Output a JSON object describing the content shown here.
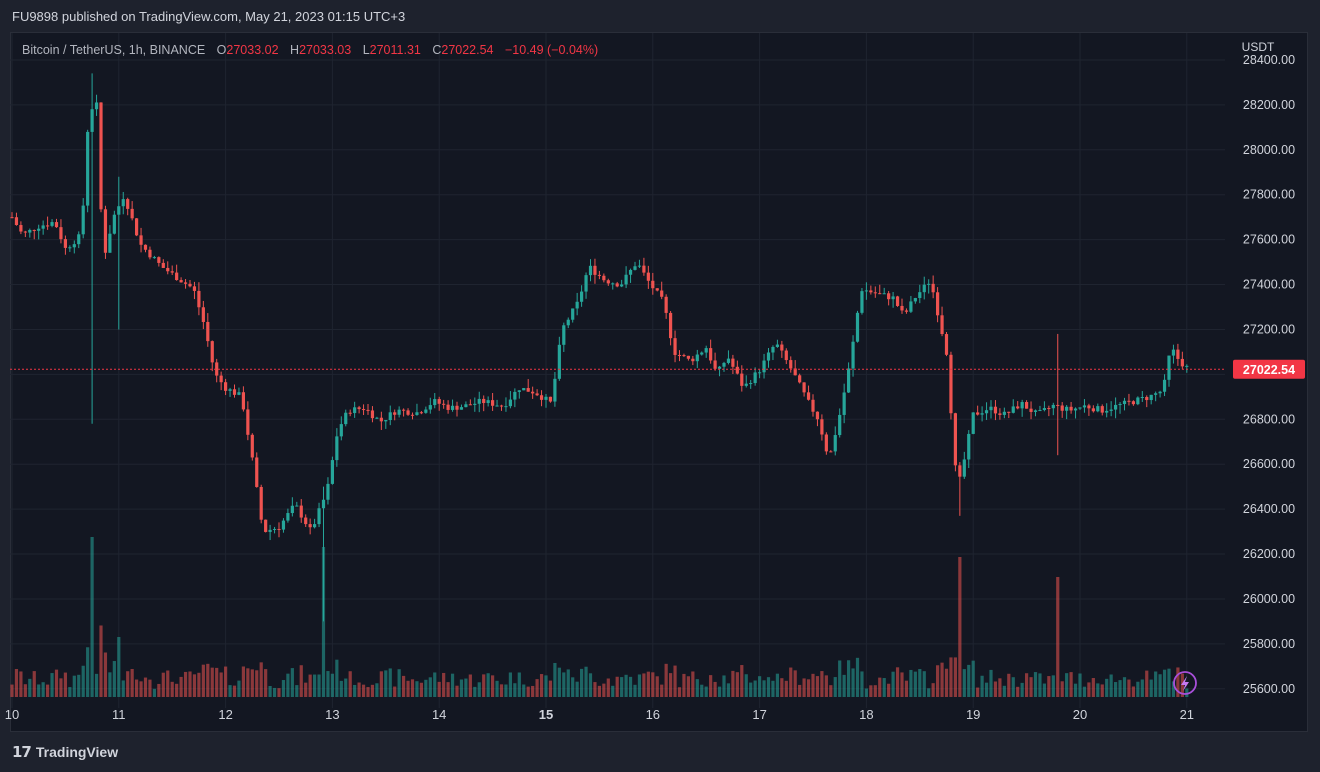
{
  "caption": "FU9898 published on TradingView.com, May 21, 2023 01:15 UTC+3",
  "footer_brand": "TradingView",
  "legend": {
    "symbol": "Bitcoin / TetherUS, 1h, BINANCE",
    "o_label": "O",
    "o_value": "27033.02",
    "h_label": "H",
    "h_value": "27033.03",
    "l_label": "L",
    "l_value": "27011.31",
    "c_label": "C",
    "c_value": "27022.54",
    "change": "−10.49 (−0.04%)"
  },
  "colors": {
    "up": "#26a69a",
    "down": "#ef5350",
    "price_tag": "#f23645",
    "grid": "#1f2430"
  },
  "chart_data": {
    "type": "candlestick",
    "ylabel": "USDT",
    "ylim": [
      25550,
      28520
    ],
    "y_ticks": [
      "28400.00",
      "28200.00",
      "28000.00",
      "27800.00",
      "27600.00",
      "27400.00",
      "27200.00",
      "27000.00",
      "26800.00",
      "26600.00",
      "26400.00",
      "26200.00",
      "26000.00",
      "25800.00",
      "25600.00"
    ],
    "x_ticks": [
      {
        "label": "10",
        "day": 10,
        "bold": false
      },
      {
        "label": "11",
        "day": 11,
        "bold": false
      },
      {
        "label": "12",
        "day": 12,
        "bold": false
      },
      {
        "label": "13",
        "day": 13,
        "bold": false
      },
      {
        "label": "14",
        "day": 14,
        "bold": false
      },
      {
        "label": "15",
        "day": 15,
        "bold": true
      },
      {
        "label": "16",
        "day": 16,
        "bold": false
      },
      {
        "label": "17",
        "day": 17,
        "bold": false
      },
      {
        "label": "18",
        "day": 18,
        "bold": false
      },
      {
        "label": "19",
        "day": 19,
        "bold": false
      },
      {
        "label": "20",
        "day": 20,
        "bold": false
      },
      {
        "label": "21",
        "day": 21,
        "bold": false
      }
    ],
    "last_price": 27022.54,
    "last_price_label": "27022.54",
    "close_path": [
      [
        10.0,
        27700
      ],
      [
        10.1,
        27620
      ],
      [
        10.25,
        27660
      ],
      [
        10.4,
        27680
      ],
      [
        10.5,
        27560
      ],
      [
        10.65,
        27620
      ],
      [
        10.72,
        28180
      ],
      [
        10.8,
        28200
      ],
      [
        10.85,
        27500
      ],
      [
        10.95,
        27700
      ],
      [
        11.05,
        27800
      ],
      [
        11.2,
        27580
      ],
      [
        11.4,
        27480
      ],
      [
        11.55,
        27430
      ],
      [
        11.7,
        27380
      ],
      [
        11.8,
        27220
      ],
      [
        11.9,
        27000
      ],
      [
        12.0,
        26940
      ],
      [
        12.15,
        26900
      ],
      [
        12.25,
        26620
      ],
      [
        12.35,
        26300
      ],
      [
        12.5,
        26320
      ],
      [
        12.65,
        26420
      ],
      [
        12.8,
        26300
      ],
      [
        12.95,
        26480
      ],
      [
        13.05,
        26750
      ],
      [
        13.15,
        26840
      ],
      [
        13.3,
        26850
      ],
      [
        13.45,
        26790
      ],
      [
        13.6,
        26840
      ],
      [
        13.8,
        26830
      ],
      [
        13.95,
        26880
      ],
      [
        14.1,
        26850
      ],
      [
        14.25,
        26860
      ],
      [
        14.4,
        26880
      ],
      [
        14.6,
        26860
      ],
      [
        14.75,
        26940
      ],
      [
        14.9,
        26920
      ],
      [
        15.05,
        26870
      ],
      [
        15.15,
        27200
      ],
      [
        15.3,
        27320
      ],
      [
        15.4,
        27480
      ],
      [
        15.55,
        27420
      ],
      [
        15.7,
        27400
      ],
      [
        15.85,
        27500
      ],
      [
        15.95,
        27420
      ],
      [
        16.1,
        27320
      ],
      [
        16.2,
        27100
      ],
      [
        16.35,
        27060
      ],
      [
        16.5,
        27120
      ],
      [
        16.6,
        27000
      ],
      [
        16.7,
        27080
      ],
      [
        16.85,
        26940
      ],
      [
        17.0,
        27020
      ],
      [
        17.15,
        27140
      ],
      [
        17.3,
        27020
      ],
      [
        17.45,
        26880
      ],
      [
        17.55,
        26800
      ],
      [
        17.65,
        26620
      ],
      [
        17.75,
        26820
      ],
      [
        17.85,
        27060
      ],
      [
        17.95,
        27380
      ],
      [
        18.1,
        27360
      ],
      [
        18.25,
        27340
      ],
      [
        18.35,
        27260
      ],
      [
        18.45,
        27340
      ],
      [
        18.6,
        27420
      ],
      [
        18.75,
        27100
      ],
      [
        18.85,
        26480
      ],
      [
        18.9,
        26580
      ],
      [
        19.0,
        26820
      ],
      [
        19.15,
        26850
      ],
      [
        19.3,
        26820
      ],
      [
        19.45,
        26870
      ],
      [
        19.6,
        26820
      ],
      [
        19.75,
        26860
      ],
      [
        19.9,
        26840
      ],
      [
        20.05,
        26860
      ],
      [
        20.2,
        26840
      ],
      [
        20.35,
        26860
      ],
      [
        20.5,
        26880
      ],
      [
        20.65,
        26900
      ],
      [
        20.78,
        26930
      ],
      [
        20.85,
        27120
      ],
      [
        20.93,
        27060
      ],
      [
        21.02,
        27022
      ]
    ]
  }
}
